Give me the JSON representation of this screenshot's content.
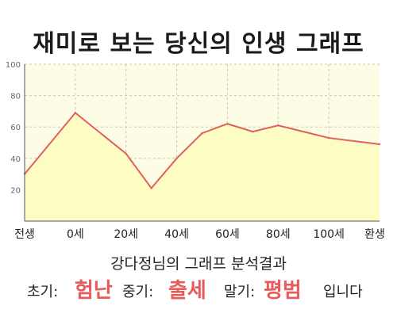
{
  "title": "재미로 보는 당신의 인생 그래프",
  "summary": "강다정님의 그래프 분석결과",
  "results": {
    "early_label": "초기:",
    "early_value": "험난",
    "middle_label": "중기:",
    "middle_value": "출세",
    "late_label": "말기:",
    "late_value": "평범",
    "ending": "입니다"
  },
  "colors": {
    "plot_bg": "#fdfde6",
    "area_fill": "#fdfcc2",
    "line": "#e06060",
    "highlight": "#e85b5b"
  },
  "chart_data": {
    "type": "area",
    "title": "재미로 보는 당신의 인생 그래프",
    "xlabel": "",
    "ylabel": "",
    "ylim": [
      0,
      100
    ],
    "yticks": [
      "100",
      "80",
      "60",
      "40",
      "20"
    ],
    "ytick_values": [
      100,
      80,
      60,
      40,
      20
    ],
    "xticks": [
      "전생",
      "0세",
      "20세",
      "40세",
      "60세",
      "80세",
      "100세",
      "환생"
    ],
    "xtick_values": [
      -20,
      0,
      20,
      40,
      60,
      80,
      100,
      120
    ],
    "grid": true,
    "points": [
      {
        "x": -20,
        "y": 30
      },
      {
        "x": 0,
        "y": 69
      },
      {
        "x": 20,
        "y": 43
      },
      {
        "x": 30,
        "y": 21
      },
      {
        "x": 40,
        "y": 40
      },
      {
        "x": 50,
        "y": 56
      },
      {
        "x": 60,
        "y": 62
      },
      {
        "x": 70,
        "y": 57
      },
      {
        "x": 80,
        "y": 61
      },
      {
        "x": 100,
        "y": 53
      },
      {
        "x": 120,
        "y": 49
      }
    ]
  }
}
